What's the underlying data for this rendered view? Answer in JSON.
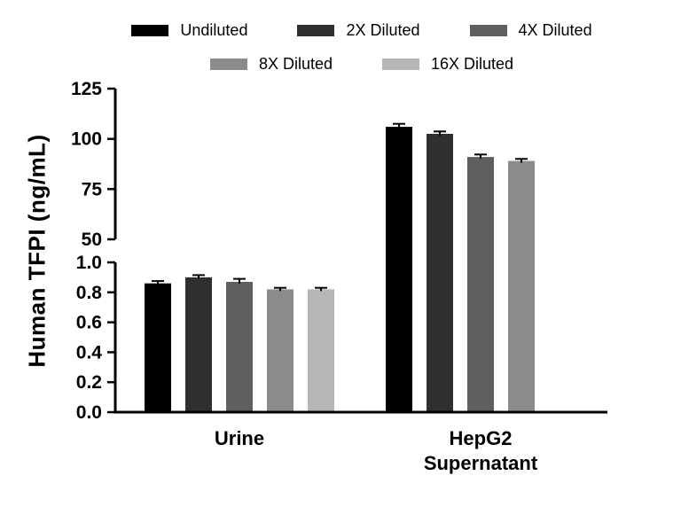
{
  "chart_data": {
    "type": "bar",
    "title": "",
    "ylabel": "Human TFPI (ng/mL)",
    "xlabel": "",
    "categories": [
      "Urine",
      "HepG2\nSupernatant"
    ],
    "series": [
      {
        "name": "Undiluted",
        "color": "#000000",
        "values": [
          0.86,
          106.0
        ],
        "errors": [
          0.015,
          1.5
        ]
      },
      {
        "name": "2X Diluted",
        "color": "#2f2f2f",
        "values": [
          0.9,
          102.5
        ],
        "errors": [
          0.015,
          1.2
        ]
      },
      {
        "name": "4X Diluted",
        "color": "#5f5f5f",
        "values": [
          0.87,
          91.0
        ],
        "errors": [
          0.02,
          1.2
        ]
      },
      {
        "name": "8X Diluted",
        "color": "#8b8b8b",
        "values": [
          0.82,
          89.0
        ],
        "errors": [
          0.01,
          1.0
        ]
      },
      {
        "name": "16X Diluted",
        "color": "#b6b6b6",
        "values": [
          0.82,
          null
        ],
        "errors": [
          0.01,
          null
        ]
      }
    ],
    "y_axis": {
      "broken_axis": true,
      "segments": [
        {
          "min": 0.0,
          "max": 1.0,
          "tick_labels": [
            "0.0",
            "0.2",
            "0.4",
            "0.6",
            "0.8",
            "1.0"
          ]
        },
        {
          "min": 50,
          "max": 125,
          "tick_labels": [
            "50",
            "75",
            "100",
            "125"
          ]
        }
      ]
    },
    "legend_position": "top",
    "grid": false
  }
}
